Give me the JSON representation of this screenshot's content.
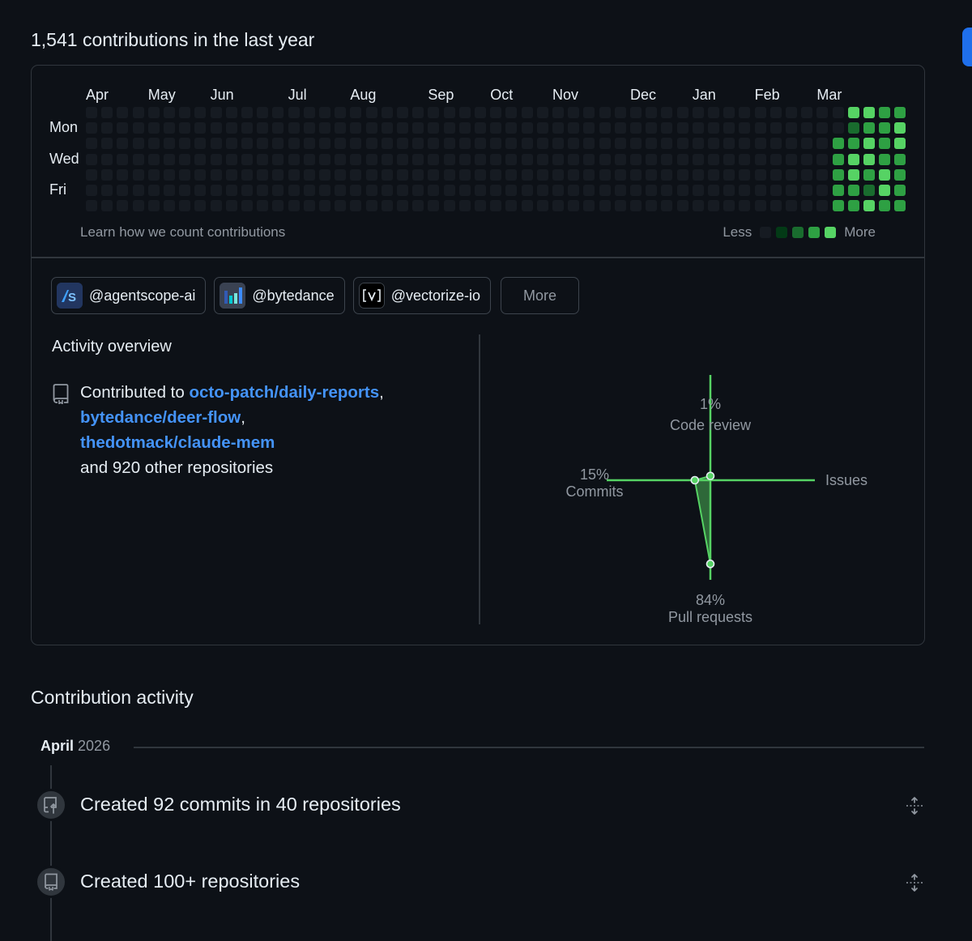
{
  "header": {
    "contributions_title": "1,541 contributions in the last year"
  },
  "calendar": {
    "months": [
      {
        "label": "Apr",
        "week": 0
      },
      {
        "label": "May",
        "week": 4
      },
      {
        "label": "Jun",
        "week": 8
      },
      {
        "label": "Jul",
        "week": 13
      },
      {
        "label": "Aug",
        "week": 17
      },
      {
        "label": "Sep",
        "week": 22
      },
      {
        "label": "Oct",
        "week": 26
      },
      {
        "label": "Nov",
        "week": 30
      },
      {
        "label": "Dec",
        "week": 35
      },
      {
        "label": "Jan",
        "week": 39
      },
      {
        "label": "Feb",
        "week": 43
      },
      {
        "label": "Mar",
        "week": 47
      }
    ],
    "day_labels": [
      {
        "label": "Mon",
        "row": 1
      },
      {
        "label": "Wed",
        "row": 3
      },
      {
        "label": "Fri",
        "row": 5
      }
    ],
    "weeks": 53,
    "level_colors": [
      "#161b22",
      "#033a16",
      "#196c2e",
      "#2ea043",
      "#56d364"
    ],
    "active_weeks": [
      [
        0,
        0,
        0,
        0,
        0,
        0,
        0
      ],
      [
        0,
        0,
        3,
        3,
        3,
        3,
        3
      ],
      [
        4,
        2,
        3,
        4,
        4,
        3,
        3
      ],
      [
        4,
        3,
        4,
        4,
        3,
        2,
        4
      ],
      [
        3,
        3,
        3,
        3,
        4,
        4,
        3
      ],
      [
        3,
        4,
        4,
        3,
        3,
        3,
        3
      ]
    ],
    "learn_link": "Learn how we count contributions",
    "legend_less": "Less",
    "legend_more": "More"
  },
  "orgs": {
    "items": [
      {
        "name": "@agentscope-ai",
        "icon": "agentscope-logo-icon"
      },
      {
        "name": "@bytedance",
        "icon": "bytedance-logo-icon"
      },
      {
        "name": "@vectorize-io",
        "icon": "vectorize-logo-icon"
      }
    ],
    "more_label": "More"
  },
  "overview": {
    "title": "Activity overview",
    "contributed_to": "Contributed to",
    "repos": [
      "octo-patch/daily-reports",
      "bytedance/deer-flow",
      "thedotmack/claude-mem"
    ],
    "sep": ",",
    "others": "and 920 other repositories",
    "radar": {
      "code_review": {
        "pct": "1%",
        "label": "Code review",
        "value": 1
      },
      "issues": {
        "pct": "",
        "label": "Issues",
        "value": 0
      },
      "pull_requests": {
        "pct": "84%",
        "label": "Pull requests",
        "value": 84
      },
      "commits": {
        "pct": "15%",
        "label": "Commits",
        "value": 15
      },
      "color": "#56d364"
    }
  },
  "activity": {
    "title": "Contribution activity",
    "month": "April",
    "year": "2026",
    "items": [
      {
        "text": "Created 92 commits in 40 repositories",
        "icon": "repo-push-icon"
      },
      {
        "text": "Created 100+ repositories",
        "icon": "repo-icon"
      }
    ]
  }
}
